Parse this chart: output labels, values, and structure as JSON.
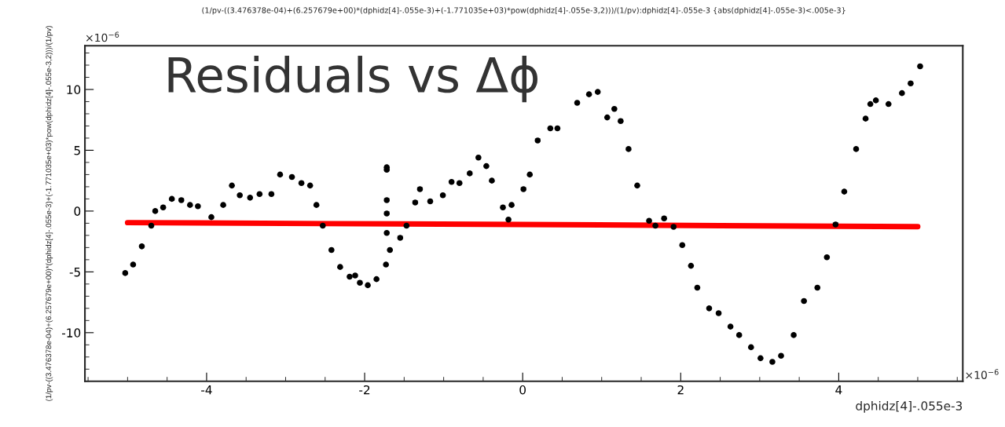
{
  "chart_data": {
    "type": "scatter",
    "title": "(1/pv-((3.476378e-04)+(6.257679e+00)*(dphidz[4]-.055e-3)+(-1.771035e+03)*pow(dphidz[4]-.055e-3,2)))/(1/pv):dphidz[4]-.055e-3 {abs(dphidz[4]-.055e-3)<.005e-3}",
    "xlabel": "dphidz[4]-.055e-3",
    "ylabel": "(1/pv-((3.476378e-04)+(6.257679e+00)*(dphidz[4]-.055e-3)+(-1.771035e+03)*pow(dphidz[4]-.055e-3,2)))/(1/pv)",
    "annotations": [
      "Residuals vs Δϕ",
      "×10$^{−6}$",
      "×10$^{−6}$"
    ],
    "series": [
      {
        "color": "#000000",
        "marker": "circle",
        "x": [
          -5.03,
          -4.93,
          -4.82,
          -4.7,
          -4.65,
          -4.55,
          -4.44,
          -4.32,
          -4.21,
          -4.11,
          -3.94,
          -3.79,
          -3.68,
          -3.58,
          -3.45,
          -3.33,
          -3.18,
          -3.07,
          -2.92,
          -2.8,
          -2.69,
          -2.61,
          -2.53,
          -2.42,
          -2.31,
          -2.19,
          -2.12,
          -2.06,
          -1.96,
          -1.85,
          -1.73,
          -1.68,
          -1.55,
          -1.47,
          -1.36,
          -1.3,
          -1.17,
          -1.01,
          -0.9,
          -0.8,
          -0.67,
          -0.56,
          -0.46,
          -0.39,
          -0.25,
          -0.18,
          -0.14,
          0.01,
          0.09,
          0.19,
          0.35,
          0.44,
          0.69,
          0.84,
          0.95,
          1.07,
          1.16,
          1.24,
          1.34,
          1.45,
          1.6,
          1.68,
          1.79,
          1.91,
          2.02,
          2.13,
          2.21,
          2.36,
          2.48,
          2.63,
          2.74,
          2.89,
          3.01,
          3.16,
          3.27,
          3.43,
          3.56,
          3.73,
          3.85,
          3.96,
          4.07,
          4.22,
          4.34,
          4.4,
          4.47,
          4.63,
          4.8,
          4.91,
          5.03,
          -1.72,
          -1.72,
          -1.72,
          -1.72,
          -1.72
        ],
        "values": [
          -5.1,
          -4.4,
          -2.9,
          -1.2,
          0.0,
          0.3,
          1.0,
          0.9,
          0.5,
          0.4,
          -0.5,
          0.5,
          2.1,
          1.3,
          1.1,
          1.4,
          1.4,
          3.0,
          2.8,
          2.3,
          2.1,
          0.5,
          -1.2,
          -3.2,
          -4.6,
          -5.4,
          -5.3,
          -5.9,
          -6.1,
          -5.6,
          -4.4,
          -3.2,
          -2.2,
          -1.2,
          0.7,
          1.8,
          0.8,
          1.3,
          2.4,
          2.3,
          3.1,
          4.4,
          3.7,
          2.5,
          0.3,
          -0.7,
          0.5,
          1.8,
          3.0,
          5.8,
          6.8,
          6.8,
          8.9,
          9.6,
          9.8,
          7.7,
          8.4,
          7.4,
          5.1,
          2.1,
          -0.8,
          -1.2,
          -0.6,
          -1.3,
          -2.8,
          -4.5,
          -6.3,
          -8.0,
          -8.4,
          -9.5,
          -10.2,
          -11.2,
          -12.1,
          -12.4,
          -11.9,
          -10.2,
          -7.4,
          -6.3,
          -3.8,
          -1.1,
          1.6,
          5.1,
          7.6,
          8.8,
          9.1,
          8.8,
          9.7,
          10.5,
          11.9,
          3.6,
          3.4,
          0.9,
          -0.2,
          -1.8
        ]
      },
      {
        "type": "line",
        "color": "#ff0000",
        "line_style": "solid",
        "x": [
          -5.0,
          -2.5,
          0.0,
          2.5,
          5.0
        ],
        "values": [
          -0.95,
          -1.03,
          -1.1,
          -1.2,
          -1.28
        ]
      }
    ],
    "xlim": [
      -5.54,
      5.57
    ],
    "ylim": [
      -14.0,
      13.6
    ],
    "xticks": [
      -4,
      -2,
      0,
      2,
      4
    ],
    "yticks": [
      -10,
      -5,
      0,
      5,
      10
    ],
    "grid": false,
    "legend": false
  }
}
